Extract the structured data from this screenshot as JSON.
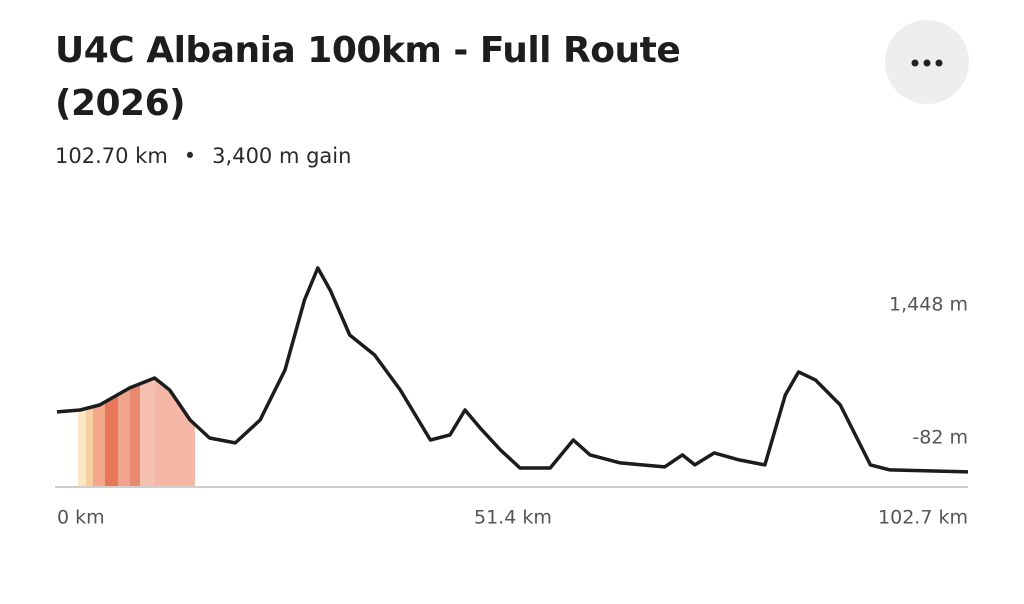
{
  "chart_data": {
    "type": "line",
    "title": "U4C Albania 100km - Full Route (2026)",
    "distance": "102.70 km",
    "gain": "3,400 m gain",
    "color": "#1c1c1c",
    "x": [
      0,
      2.6,
      4.8,
      8.2,
      11.0,
      12.7,
      15.0,
      17.2,
      20.1,
      22.9,
      25.7,
      27.9,
      29.4,
      30.8,
      33.0,
      35.8,
      38.7,
      42.1,
      44.3,
      46.0,
      47.7,
      50.0,
      52.2,
      55.6,
      58.2,
      60.1,
      63.5,
      68.5,
      70.5,
      71.9,
      74.1,
      76.9,
      79.8,
      82.1,
      83.6,
      85.5,
      88.3,
      91.7,
      93.9,
      102.7
    ],
    "values": [
      218,
      240,
      298,
      494,
      608,
      470,
      125,
      -82,
      -139,
      125,
      700,
      1506,
      1874,
      1620,
      1103,
      873,
      470,
      -105,
      -47,
      240,
      34,
      -220,
      -427,
      -427,
      -105,
      -277,
      -369,
      -415,
      -277,
      -392,
      -254,
      -334,
      -392,
      413,
      678,
      586,
      298,
      -392,
      -449,
      -472
    ],
    "xlim": [
      0,
      102.7
    ],
    "xticks": [
      {
        "value": 0,
        "label": "0 km"
      },
      {
        "value": 51.4,
        "label": "51.4 km"
      },
      {
        "value": 102.7,
        "label": "102.7 km"
      }
    ],
    "ylim": [
      -646,
      1966
    ],
    "yticks": [
      {
        "value": 1448,
        "label": "1,448 m"
      },
      {
        "value": -82,
        "label": "-82 m"
      }
    ],
    "grid": false
  }
}
